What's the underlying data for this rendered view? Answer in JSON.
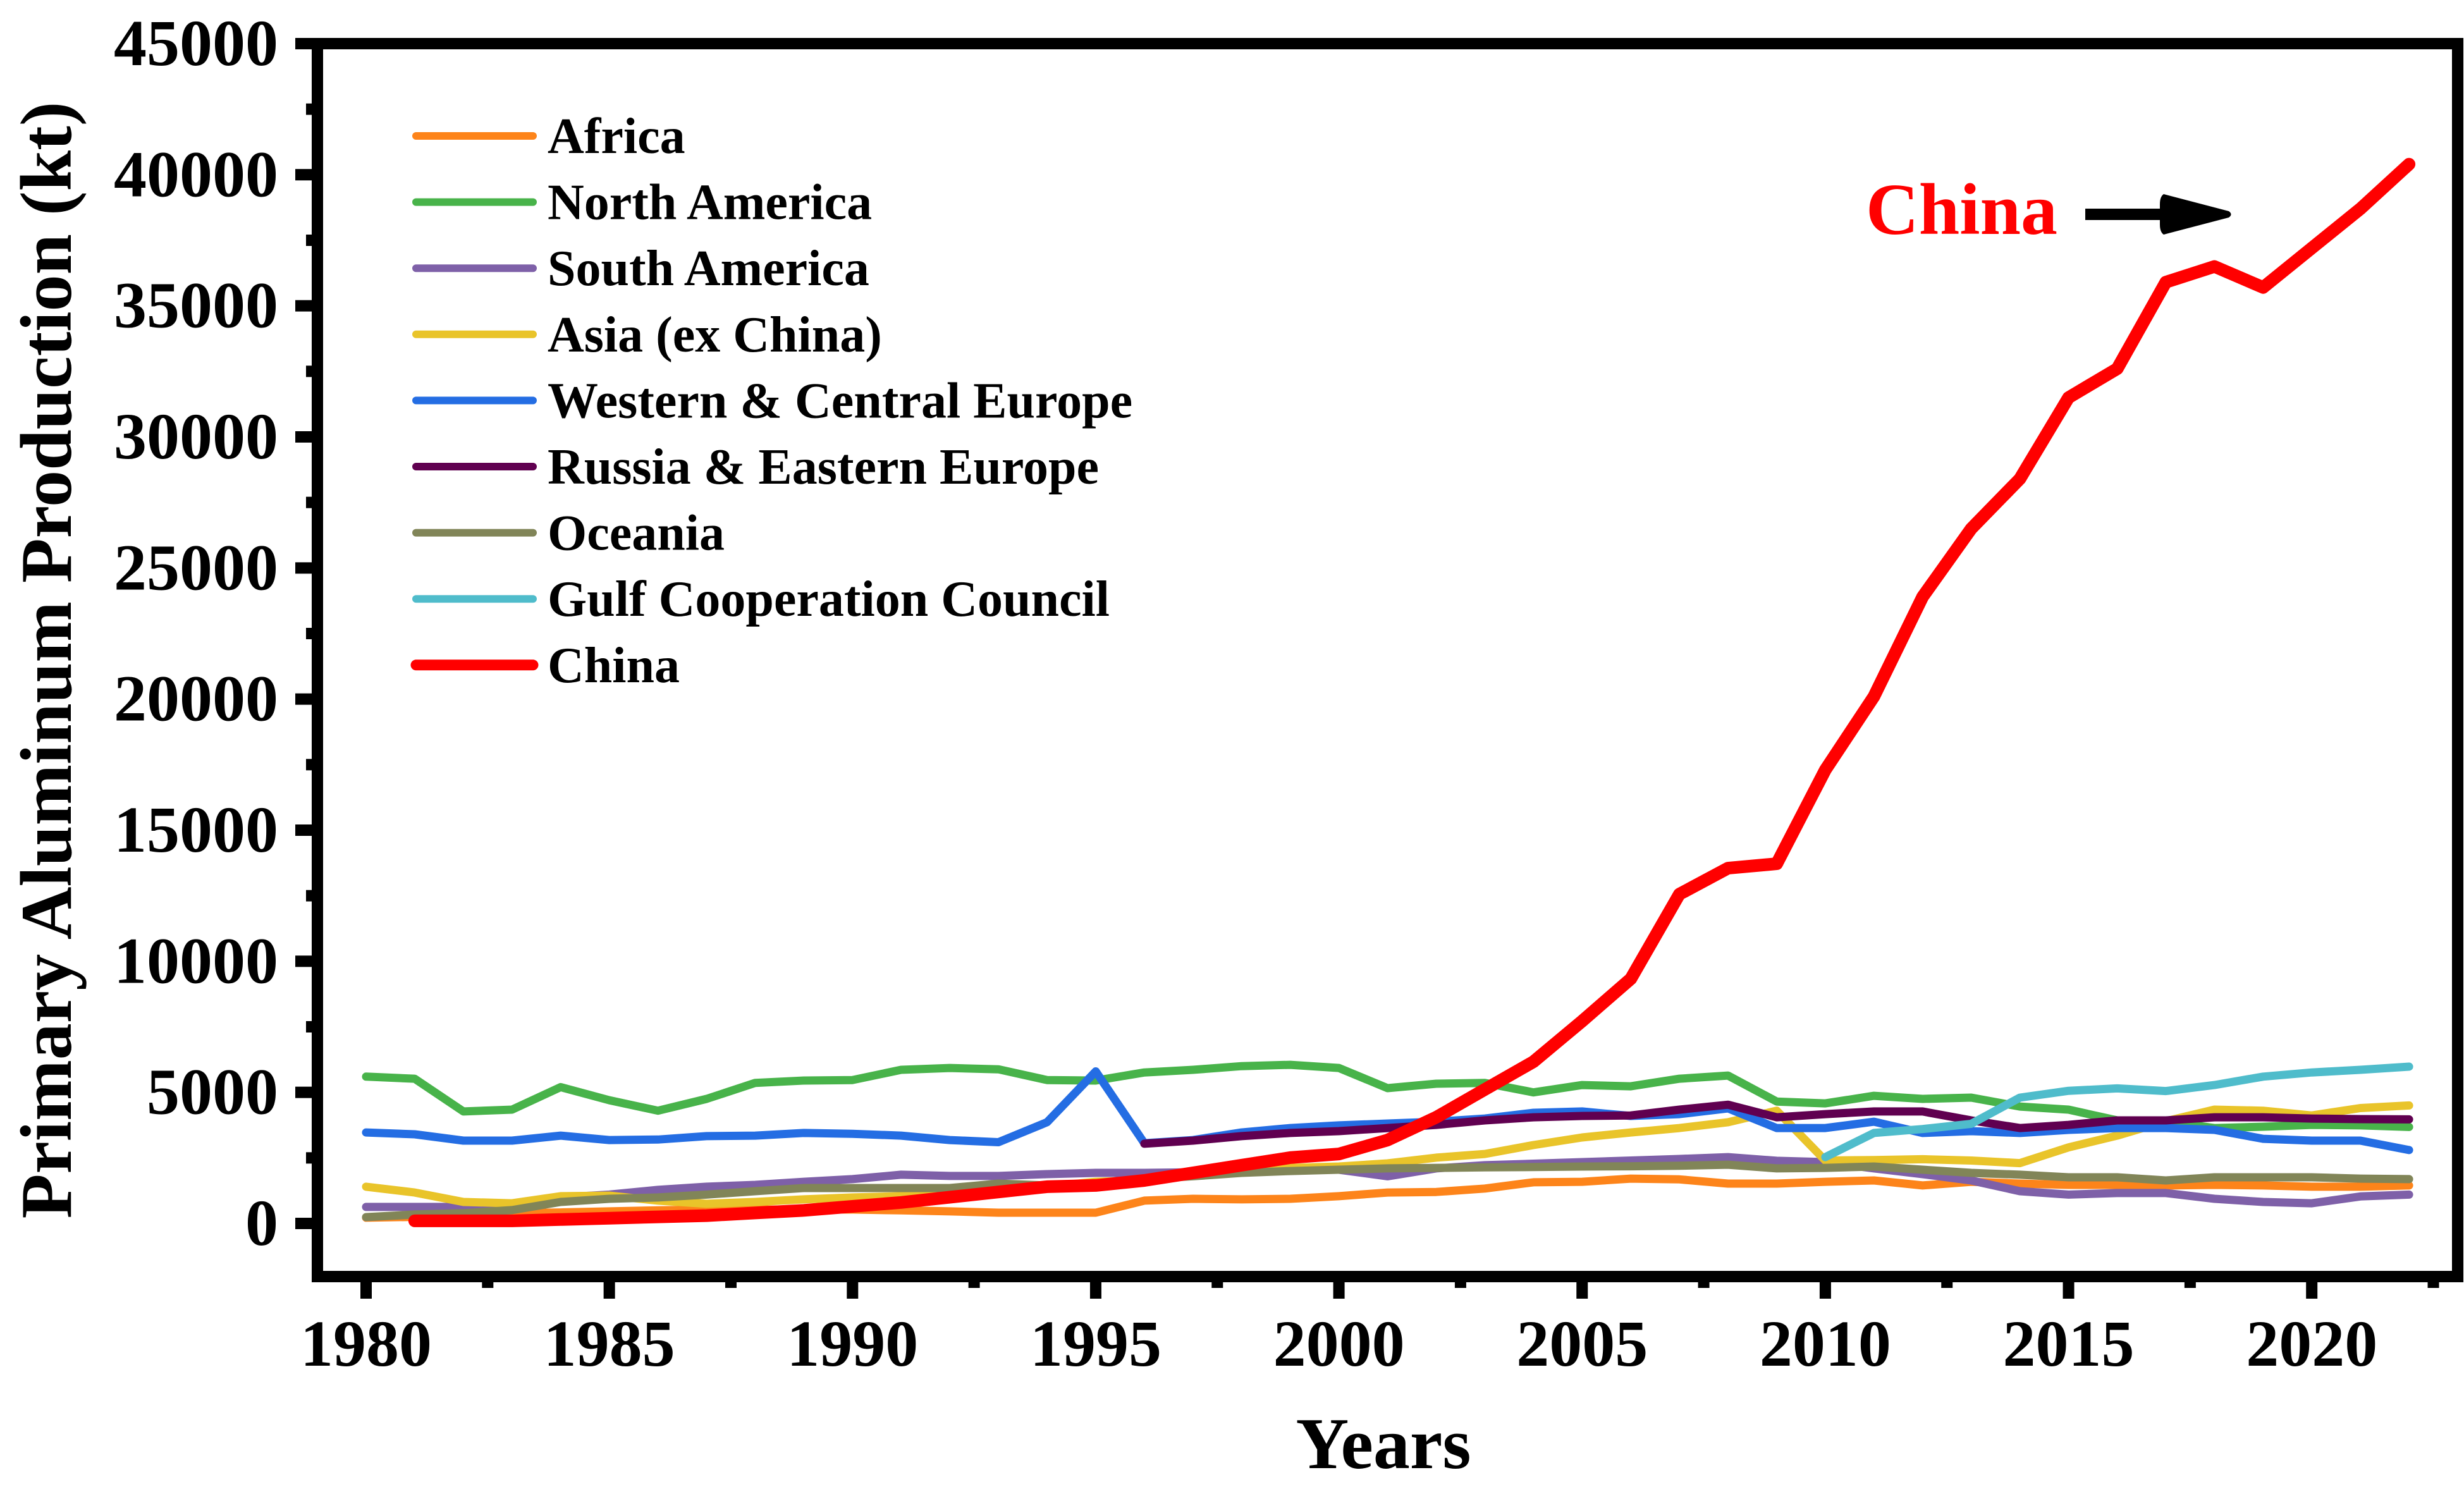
{
  "chart_data": {
    "type": "line",
    "title": "",
    "xlabel": "Years",
    "ylabel": "Primary Aluminum Production (kt)",
    "xlim": [
      1979,
      2024
    ],
    "ylim": [
      -2500,
      45000
    ],
    "x_ticks": [
      1980,
      1985,
      1990,
      1995,
      2000,
      2005,
      2010,
      2015,
      2020
    ],
    "x_tick_labels": [
      "1980",
      "1985",
      "1990",
      "1995",
      "2000",
      "2005",
      "2010",
      "2015",
      "2020"
    ],
    "y_ticks": [
      0,
      5000,
      10000,
      15000,
      20000,
      25000,
      30000,
      35000,
      40000,
      45000
    ],
    "y_tick_labels": [
      "0",
      "5000",
      "10000",
      "15000",
      "20000",
      "25000",
      "30000",
      "35000",
      "40000",
      "45000"
    ],
    "grid": false,
    "legend_position": "top-left",
    "x": [
      1980,
      1981,
      1982,
      1983,
      1984,
      1985,
      1986,
      1987,
      1988,
      1989,
      1990,
      1991,
      1992,
      1993,
      1994,
      1995,
      1996,
      1997,
      1998,
      1999,
      2000,
      2001,
      2002,
      2003,
      2004,
      2005,
      2006,
      2007,
      2008,
      2009,
      2010,
      2011,
      2012,
      2013,
      2014,
      2015,
      2016,
      2017,
      2018,
      2019,
      2020,
      2021,
      2022
    ],
    "series": [
      {
        "name": "Africa",
        "color": "#FD841A",
        "values": [
          220,
          250,
          290,
          390,
          420,
          460,
          500,
          530,
          530,
          530,
          530,
          500,
          460,
          410,
          410,
          410,
          870,
          940,
          920,
          940,
          1040,
          1180,
          1200,
          1330,
          1570,
          1590,
          1710,
          1680,
          1520,
          1520,
          1590,
          1640,
          1450,
          1590,
          1520,
          1470,
          1470,
          1450,
          1470,
          1450,
          1400,
          1400,
          1450
        ]
      },
      {
        "name": "North America",
        "color": "#48B34A",
        "values": [
          5600,
          5520,
          4270,
          4340,
          5200,
          4700,
          4300,
          4750,
          5360,
          5450,
          5470,
          5860,
          5930,
          5880,
          5470,
          5450,
          5760,
          5860,
          6000,
          6050,
          5930,
          5160,
          5330,
          5360,
          5000,
          5280,
          5230,
          5520,
          5640,
          4650,
          4580,
          4870,
          4750,
          4800,
          4460,
          4340,
          3930,
          3880,
          3640,
          3690,
          3760,
          3740,
          3680
        ]
      },
      {
        "name": "South America",
        "color": "#7E60A8",
        "values": [
          630,
          630,
          630,
          700,
          990,
          1100,
          1280,
          1400,
          1470,
          1590,
          1690,
          1860,
          1810,
          1810,
          1880,
          1930,
          1930,
          1950,
          2000,
          2050,
          2050,
          1800,
          2100,
          2220,
          2280,
          2340,
          2400,
          2460,
          2530,
          2390,
          2340,
          2100,
          1880,
          1640,
          1230,
          1100,
          1160,
          1160,
          940,
          820,
          770,
          1030,
          1100
        ]
      },
      {
        "name": "Asia (ex China)",
        "color": "#E9C42A",
        "values": [
          1400,
          1180,
          820,
          770,
          1040,
          1060,
          870,
          750,
          820,
          920,
          990,
          1040,
          1160,
          1230,
          1400,
          1590,
          1640,
          1880,
          2100,
          2120,
          2170,
          2290,
          2510,
          2650,
          2990,
          3280,
          3470,
          3640,
          3860,
          4300,
          2400,
          2420,
          2450,
          2400,
          2300,
          2900,
          3350,
          3900,
          4340,
          4300,
          4120,
          4400,
          4500
        ]
      },
      {
        "name": "Western & Central Europe",
        "color": "#246DE3",
        "values": [
          3470,
          3400,
          3160,
          3160,
          3350,
          3180,
          3200,
          3330,
          3350,
          3450,
          3420,
          3350,
          3180,
          3100,
          3860,
          5800,
          3060,
          3180,
          3470,
          3640,
          3740,
          3810,
          3880,
          4000,
          4220,
          4270,
          4100,
          4170,
          4390,
          3640,
          3640,
          3880,
          3450,
          3520,
          3450,
          3570,
          3640,
          3640,
          3570,
          3230,
          3160,
          3160,
          2800
        ]
      },
      {
        "name": "Russia & Eastern Europe",
        "color": "#600050",
        "values": [
          null,
          null,
          null,
          null,
          null,
          null,
          null,
          null,
          null,
          null,
          null,
          null,
          null,
          null,
          null,
          null,
          3040,
          3160,
          3330,
          3450,
          3520,
          3640,
          3760,
          3930,
          4050,
          4100,
          4120,
          4340,
          4530,
          4050,
          4170,
          4270,
          4270,
          3930,
          3640,
          3760,
          3930,
          3930,
          4050,
          4050,
          4000,
          3980,
          3970
        ]
      },
      {
        "name": "Oceania",
        "color": "#818558",
        "values": [
          240,
          340,
          390,
          510,
          820,
          940,
          990,
          1100,
          1230,
          1350,
          1350,
          1350,
          1350,
          1520,
          1450,
          1520,
          1700,
          1800,
          1930,
          2000,
          2050,
          2100,
          2120,
          2140,
          2150,
          2170,
          2180,
          2200,
          2240,
          2100,
          2120,
          2170,
          2050,
          1930,
          1860,
          1760,
          1760,
          1640,
          1760,
          1760,
          1760,
          1710,
          1690
        ]
      },
      {
        "name": "Gulf Cooperation Council",
        "color": "#4FBCCB",
        "values": [
          null,
          null,
          null,
          null,
          null,
          null,
          null,
          null,
          null,
          null,
          null,
          null,
          null,
          null,
          null,
          null,
          null,
          null,
          null,
          null,
          null,
          null,
          null,
          null,
          null,
          null,
          null,
          null,
          null,
          null,
          2530,
          3450,
          3600,
          3800,
          4800,
          5060,
          5150,
          5050,
          5280,
          5600,
          5760,
          5860,
          5980
        ]
      },
      {
        "name": "China",
        "color": "#FF0000",
        "values": [
          null,
          100,
          100,
          100,
          150,
          200,
          250,
          300,
          400,
          500,
          650,
          800,
          1000,
          1200,
          1400,
          1450,
          1640,
          1930,
          2220,
          2510,
          2650,
          3180,
          4050,
          5110,
          6170,
          7720,
          9330,
          12560,
          13550,
          13720,
          17300,
          20100,
          23900,
          26500,
          28400,
          31500,
          32600,
          35900,
          36500,
          35700,
          37200,
          38700,
          40400
        ]
      }
    ],
    "annotations": [
      {
        "text": "China",
        "color": "#FF0000",
        "arrow": "right"
      }
    ]
  }
}
